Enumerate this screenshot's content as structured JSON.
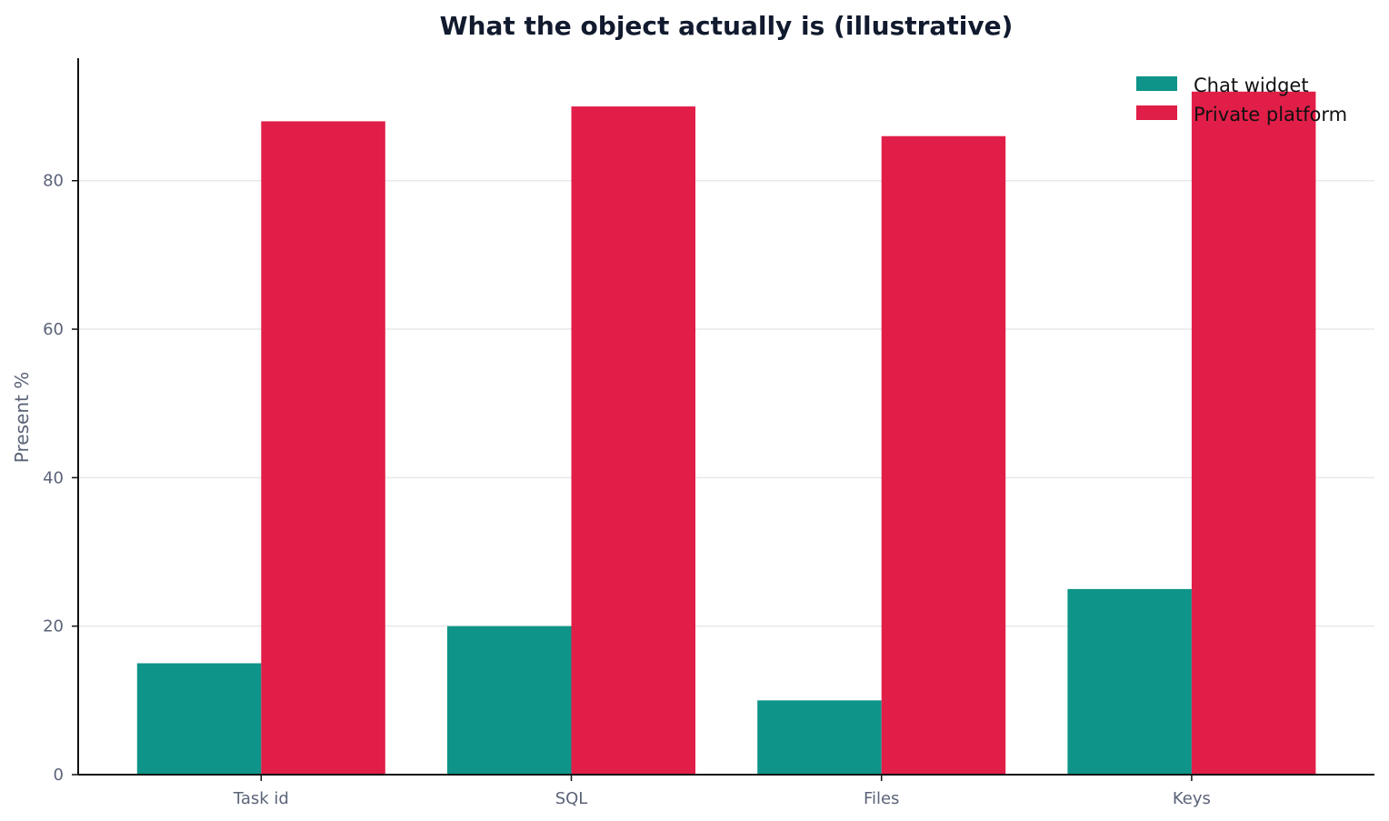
{
  "chart_data": {
    "type": "bar",
    "title": "What the object actually is (illustrative)",
    "xlabel": "",
    "ylabel": "Present %",
    "categories": [
      "Task id",
      "SQL",
      "Files",
      "Keys"
    ],
    "series": [
      {
        "name": "Chat widget",
        "color": "#0e9488",
        "values": [
          15,
          20,
          10,
          25
        ]
      },
      {
        "name": "Private platform",
        "color": "#e11e48",
        "values": [
          88,
          90,
          86,
          92
        ]
      }
    ],
    "ylim": [
      0,
      96.5
    ],
    "yticks": [
      0,
      20,
      40,
      60,
      80
    ],
    "grid": "horizontal",
    "legend_position": "top-right"
  }
}
